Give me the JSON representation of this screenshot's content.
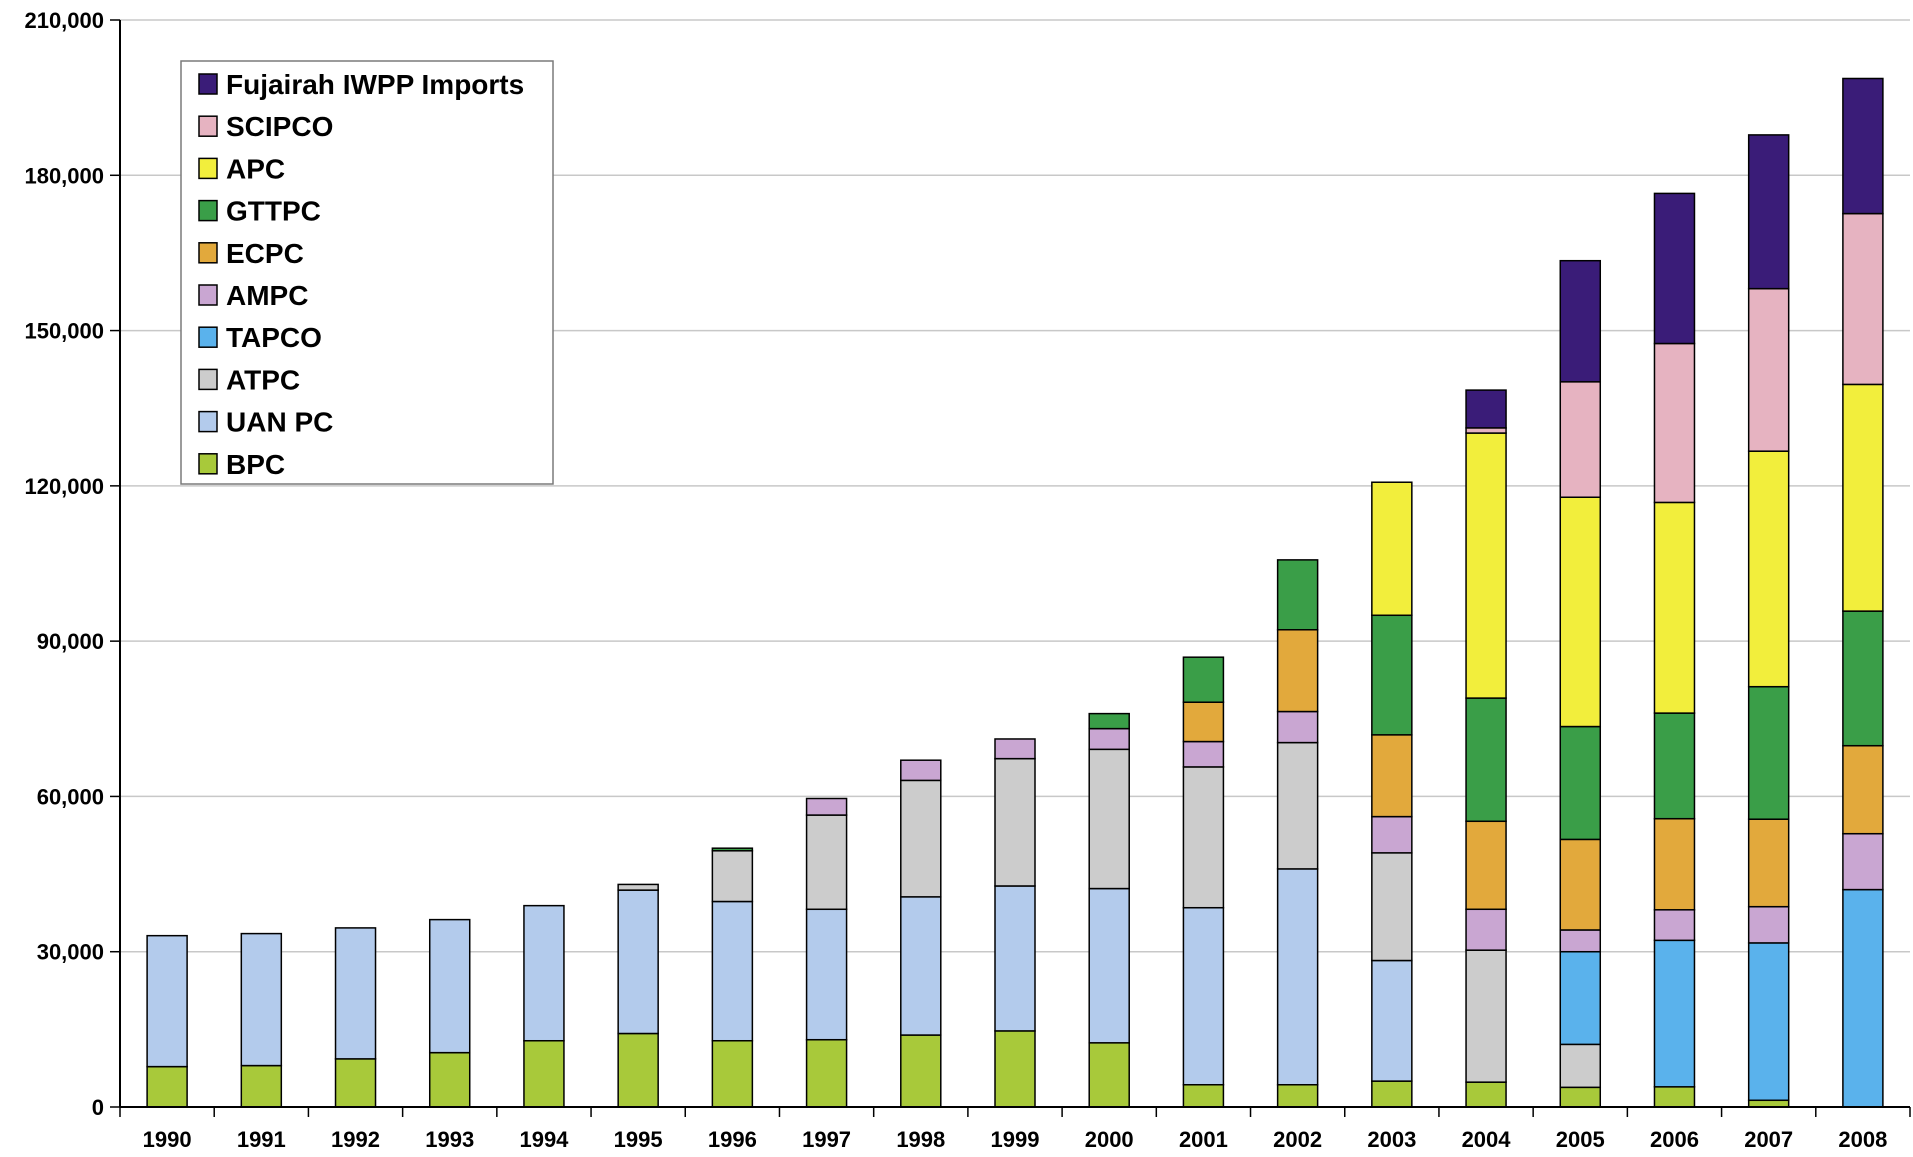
{
  "chart_data": {
    "type": "bar",
    "stacked": true,
    "title": "",
    "xlabel": "",
    "ylabel": "",
    "ylim": [
      0,
      210000
    ],
    "yticks": [
      0,
      30000,
      60000,
      90000,
      120000,
      150000,
      180000,
      210000
    ],
    "ytick_labels": [
      "0",
      "30,000",
      "60,000",
      "90,000",
      "120,000",
      "150,000",
      "180,000",
      "210,000"
    ],
    "grid": true,
    "legend_position": "top-left",
    "categories": [
      "1990",
      "1991",
      "1992",
      "1993",
      "1994",
      "1995",
      "1996",
      "1997",
      "1998",
      "1999",
      "2000",
      "2001",
      "2002",
      "2003",
      "2004",
      "2005",
      "2006",
      "2007",
      "2008"
    ],
    "series": [
      {
        "name": "BPC",
        "color": "#a8c93a",
        "values": [
          7800,
          8000,
          9300,
          10500,
          12800,
          14200,
          12800,
          13000,
          13900,
          14700,
          12400,
          4300,
          4300,
          5000,
          4800,
          3800,
          3900,
          1300,
          0
        ]
      },
      {
        "name": "UAN PC",
        "color": "#b3cbec",
        "values": [
          25300,
          25500,
          25300,
          25700,
          26100,
          27700,
          26900,
          25200,
          26700,
          28000,
          29800,
          34200,
          41700,
          23300,
          0,
          0,
          0,
          0,
          0
        ]
      },
      {
        "name": "ATPC",
        "color": "#cccccc",
        "values": [
          0,
          0,
          0,
          0,
          0,
          1100,
          9800,
          18200,
          22500,
          24600,
          26900,
          27200,
          24400,
          20800,
          25500,
          8300,
          0,
          0,
          0
        ]
      },
      {
        "name": "TAPCO",
        "color": "#5ab2ec",
        "values": [
          0,
          0,
          0,
          0,
          0,
          0,
          0,
          0,
          0,
          0,
          0,
          0,
          0,
          0,
          0,
          17900,
          28300,
          30400,
          42000
        ]
      },
      {
        "name": "AMPC",
        "color": "#c9a6d2",
        "values": [
          0,
          0,
          0,
          0,
          0,
          0,
          0,
          3200,
          3900,
          3800,
          4000,
          4900,
          6000,
          7000,
          7900,
          4200,
          5900,
          7000,
          10800
        ]
      },
      {
        "name": "ECPC",
        "color": "#e2a93c",
        "values": [
          0,
          0,
          0,
          0,
          0,
          0,
          0,
          0,
          0,
          0,
          0,
          7600,
          15800,
          15800,
          17000,
          17500,
          17600,
          16900,
          17000
        ]
      },
      {
        "name": "GTTPC",
        "color": "#3a9e48",
        "values": [
          0,
          0,
          0,
          0,
          0,
          0,
          500,
          0,
          0,
          0,
          2900,
          8700,
          13500,
          23100,
          23800,
          21800,
          20400,
          25600,
          26000
        ]
      },
      {
        "name": "APC",
        "color": "#f2ee3c",
        "values": [
          0,
          0,
          0,
          0,
          0,
          0,
          0,
          0,
          0,
          0,
          0,
          0,
          0,
          25700,
          51200,
          44300,
          40700,
          45500,
          43800
        ]
      },
      {
        "name": "SCIPCO",
        "color": "#e6b3c1",
        "values": [
          0,
          0,
          0,
          0,
          0,
          0,
          0,
          0,
          0,
          0,
          0,
          0,
          0,
          0,
          1000,
          22300,
          30700,
          31400,
          33000
        ]
      },
      {
        "name": "Fujairah IWPP Imports",
        "color": "#3a1c78",
        "values": [
          0,
          0,
          0,
          0,
          0,
          0,
          0,
          0,
          0,
          0,
          0,
          0,
          0,
          0,
          7300,
          23400,
          29000,
          29700,
          26100
        ]
      }
    ],
    "legend_order": [
      "Fujairah IWPP Imports",
      "SCIPCO",
      "APC",
      "GTTPC",
      "ECPC",
      "AMPC",
      "TAPCO",
      "ATPC",
      "UAN PC",
      "BPC"
    ]
  }
}
